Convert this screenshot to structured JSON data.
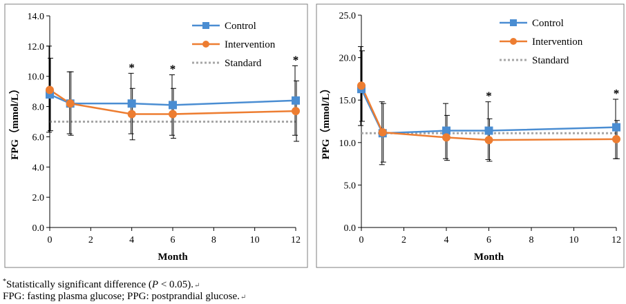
{
  "colors": {
    "control": "#4A8DD2",
    "intervention": "#ED7D31",
    "standard": "#A6A6A6",
    "frame": "#7F7F7F",
    "axis": "#000000"
  },
  "footnotes": {
    "sig_prefix": "Statistically significant difference (",
    "sig_p": "P",
    "sig_suffix": " < 0.05).",
    "abbrev": "FPG: fasting plasma glucose; PPG: postprandial glucose.",
    "return_mark": "↵"
  },
  "chart_data": [
    {
      "type": "line",
      "xlabel": "Month",
      "ylabel": "FPG（mmol/L）",
      "xlim": [
        0,
        12
      ],
      "ylim": [
        0,
        14
      ],
      "x_ticks": [
        0,
        2,
        4,
        6,
        8,
        10,
        12
      ],
      "x_tick_labels": [
        "0",
        "2",
        "4",
        "6",
        "8",
        "10",
        "12"
      ],
      "y_ticks": [
        0,
        2,
        4,
        6,
        8,
        10,
        12,
        14
      ],
      "y_tick_labels": [
        "0.0",
        "2.0",
        "4.0",
        "6.0",
        "8.0",
        "10.0",
        "12.0",
        "14.0"
      ],
      "legend_position": "top-right",
      "grid": false,
      "series": [
        {
          "name": "Control",
          "marker": "square",
          "x": [
            0,
            1,
            4,
            6,
            12
          ],
          "y": [
            8.8,
            8.2,
            8.2,
            8.1,
            8.4
          ],
          "error_upper": [
            12.0,
            10.3,
            10.2,
            10.1,
            10.7
          ],
          "error_lower": [
            6.3,
            6.2,
            6.2,
            6.1,
            6.1
          ]
        },
        {
          "name": "Intervention",
          "marker": "circle",
          "x": [
            0,
            1,
            4,
            6,
            12
          ],
          "y": [
            9.1,
            8.2,
            7.5,
            7.5,
            7.7
          ],
          "error_upper": [
            11.2,
            10.3,
            9.2,
            9.2,
            9.7
          ],
          "error_lower": [
            6.4,
            6.1,
            5.8,
            5.9,
            5.7
          ]
        },
        {
          "name": "Standard",
          "style": "dotted",
          "x": [
            0,
            12
          ],
          "y": [
            7.0,
            7.0
          ]
        }
      ],
      "annotations": [
        {
          "text": "*",
          "x": 4,
          "y": 10.2
        },
        {
          "text": "*",
          "x": 6,
          "y": 10.1
        },
        {
          "text": "*",
          "x": 12,
          "y": 10.7
        }
      ]
    },
    {
      "type": "line",
      "xlabel": "Month",
      "ylabel": "PPG（mmol/L）",
      "xlim": [
        0,
        12
      ],
      "ylim": [
        0,
        25
      ],
      "x_ticks": [
        0,
        2,
        4,
        6,
        8,
        10,
        12
      ],
      "x_tick_labels": [
        "0",
        "2",
        "4",
        "6",
        "8",
        "10",
        "12"
      ],
      "y_ticks": [
        0,
        5,
        10,
        15,
        20,
        25
      ],
      "y_tick_labels": [
        "0.0",
        "5.0",
        "10.0",
        "15.0",
        "20.0",
        "25.0"
      ],
      "legend_position": "top-right",
      "grid": false,
      "series": [
        {
          "name": "Control",
          "marker": "square",
          "x": [
            0,
            1,
            4,
            6,
            12
          ],
          "y": [
            16.3,
            11.1,
            11.4,
            11.4,
            11.8
          ],
          "error_upper": [
            21.3,
            14.8,
            14.6,
            14.8,
            15.1
          ],
          "error_lower": [
            12.0,
            7.4,
            8.1,
            8.0,
            8.1
          ]
        },
        {
          "name": "Intervention",
          "marker": "circle",
          "x": [
            0,
            1,
            4,
            6,
            12
          ],
          "y": [
            16.7,
            11.2,
            10.6,
            10.3,
            10.4
          ],
          "error_upper": [
            20.8,
            14.6,
            13.2,
            12.8,
            12.6
          ],
          "error_lower": [
            12.5,
            7.7,
            7.9,
            7.8,
            8.1
          ]
        },
        {
          "name": "Standard",
          "style": "dotted",
          "x": [
            0,
            12
          ],
          "y": [
            11.1,
            11.1
          ]
        }
      ],
      "annotations": [
        {
          "text": "*",
          "x": 6,
          "y": 14.8
        },
        {
          "text": "*",
          "x": 12,
          "y": 15.1
        }
      ]
    }
  ]
}
